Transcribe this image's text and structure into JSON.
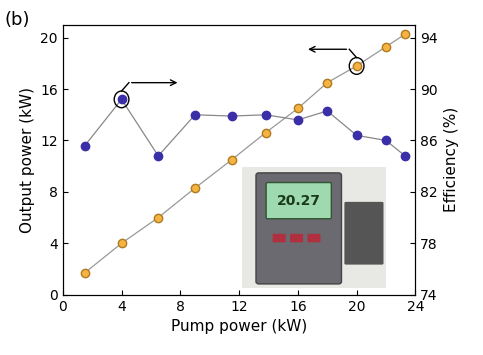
{
  "chart_data": {
    "type": "line",
    "panel_label": "(b)",
    "x_label": "Pump power (kW)",
    "y_label": "Output power (kW)",
    "y2_label": "Efficiency (%)",
    "x": [
      1.5,
      4,
      6.5,
      9,
      11.5,
      13.8,
      16,
      18,
      20,
      22,
      23.3
    ],
    "series": [
      {
        "name": "Output power",
        "color": "#f5b342",
        "marker": "o",
        "line_style": "none",
        "values": [
          1.7,
          4.0,
          6.0,
          8.3,
          10.5,
          12.6,
          14.5,
          16.5,
          17.8,
          19.3,
          20.27
        ]
      },
      {
        "name": "Efficiency",
        "color": "#3b2fa8",
        "marker": "o",
        "line_style": "solid",
        "axis": "y2",
        "values": [
          85.6,
          89.2,
          84.8,
          88.0,
          87.9,
          88.0,
          87.6,
          88.3,
          86.4,
          86.0,
          84.8
        ]
      }
    ],
    "xlim": [
      0,
      24
    ],
    "xticks": [
      0,
      4,
      8,
      12,
      16,
      20,
      24
    ],
    "ylim": [
      0,
      21
    ],
    "yticks": [
      0,
      4,
      8,
      12,
      16,
      20
    ],
    "y2lim": [
      74,
      95
    ],
    "y2ticks": [
      74,
      78,
      82,
      86,
      90,
      94
    ],
    "annotations": [
      "20.27"
    ]
  }
}
